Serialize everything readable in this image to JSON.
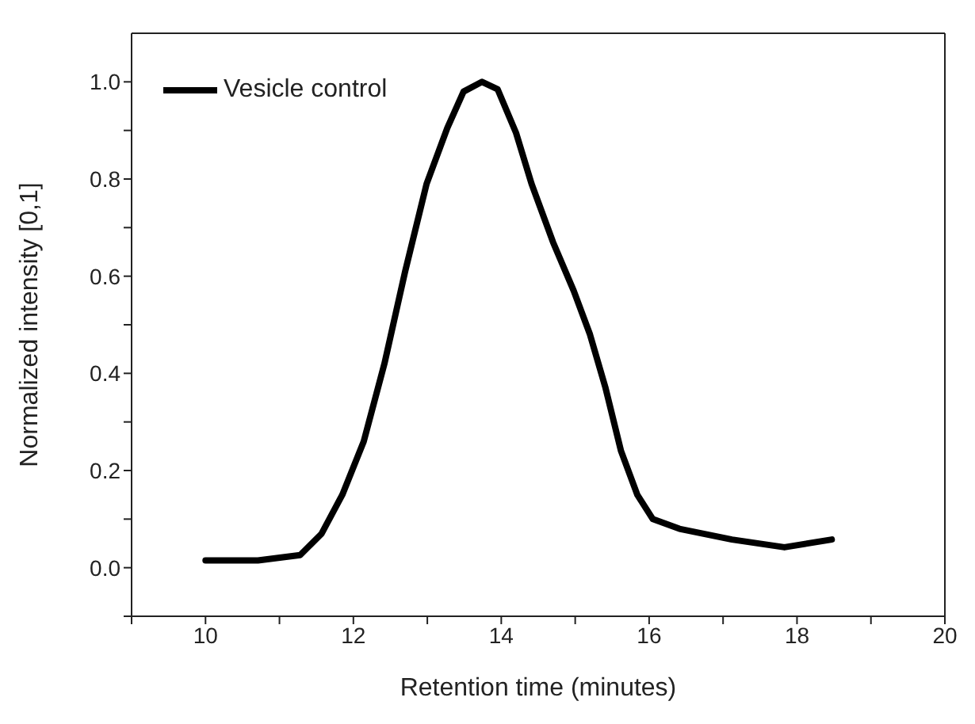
{
  "chart_data": {
    "type": "line",
    "xlabel": "Retention time (minutes)",
    "ylabel": "Normalized intensity [0,1]",
    "xlim": [
      9,
      20
    ],
    "xticks": [
      {
        "value": 9,
        "label": null
      },
      10,
      {
        "value": 11,
        "label": null
      },
      12,
      {
        "value": 13,
        "label": null
      },
      14,
      {
        "value": 15,
        "label": null
      },
      16,
      {
        "value": 17,
        "label": null
      },
      18,
      {
        "value": 19,
        "label": null
      },
      20
    ],
    "ylim": [
      -0.1,
      1.1
    ],
    "yticks": [
      {
        "value": -0.1,
        "label": null
      },
      {
        "value": 0,
        "label": "0.0"
      },
      {
        "value": 0.1,
        "label": null
      },
      {
        "value": 0.2,
        "label": "0.2"
      },
      {
        "value": 0.3,
        "label": null
      },
      {
        "value": 0.4,
        "label": "0.4"
      },
      {
        "value": 0.5,
        "label": null
      },
      {
        "value": 0.6,
        "label": "0.6"
      },
      {
        "value": 0.7,
        "label": null
      },
      {
        "value": 0.8,
        "label": "0.8"
      },
      {
        "value": 0.9,
        "label": null
      },
      {
        "value": 1.0,
        "label": "1.0"
      }
    ],
    "grid": false,
    "legend": "top left",
    "marker": "none",
    "line_style": "solid",
    "series": [
      {
        "name": "Vesicle control",
        "color": "#000000",
        "x": [
          10.0,
          10.71,
          11.28,
          11.57,
          11.85,
          12.14,
          12.42,
          12.7,
          12.99,
          13.27,
          13.49,
          13.74,
          13.95,
          14.2,
          14.41,
          14.7,
          14.98,
          15.2,
          15.41,
          15.62,
          15.84,
          16.05,
          16.41,
          17.12,
          17.83,
          18.47
        ],
        "values": [
          0.015,
          0.015,
          0.026,
          0.07,
          0.15,
          0.26,
          0.42,
          0.61,
          0.79,
          0.905,
          0.98,
          1.0,
          0.985,
          0.895,
          0.79,
          0.67,
          0.57,
          0.48,
          0.37,
          0.24,
          0.15,
          0.1,
          0.08,
          0.058,
          0.042,
          0.058
        ]
      }
    ]
  }
}
